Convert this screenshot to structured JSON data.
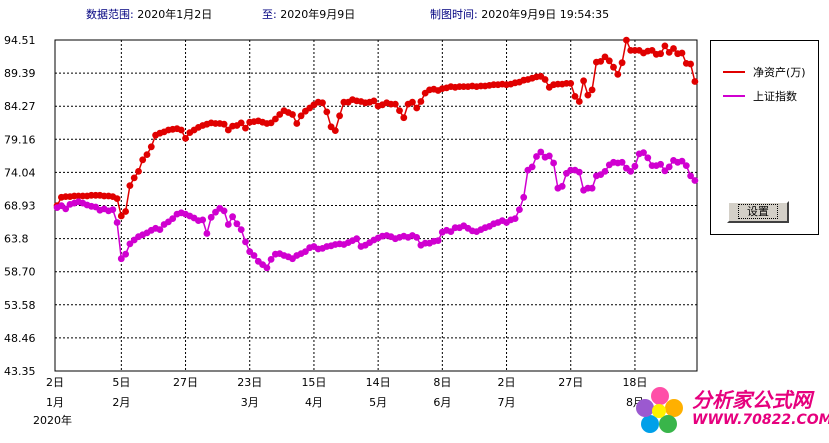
{
  "header": {
    "range_label": "数据范围:",
    "range_start": "2020年1月2日",
    "to_label": "至:",
    "range_end": "2020年9月9日",
    "made_label": "制图时间:",
    "made_time": "2020年9月9日  19:54:35"
  },
  "legend": {
    "items": [
      {
        "label": "净资产(万)",
        "color": "#e00000"
      },
      {
        "label": "上证指数",
        "color": "#d000d0"
      }
    ]
  },
  "settings_button": "设置",
  "watermark": {
    "text": "分析家公式网",
    "url": "WWW.70822.COM"
  },
  "chart_data": {
    "type": "line",
    "ylim": [
      43.35,
      94.51
    ],
    "yticks": [
      "94.51",
      "89.39",
      "84.27",
      "79.16",
      "74.04",
      "68.93",
      "63.8",
      "58.70",
      "53.58",
      "48.46",
      "43.35"
    ],
    "x_ticks": [
      {
        "day": "2日",
        "month": "1月",
        "i": 0
      },
      {
        "day": "5日",
        "month": "2月",
        "i": 15
      },
      {
        "day": "27日",
        "month": "",
        "i": 30
      },
      {
        "day": "23日",
        "month": "3月",
        "i": 45
      },
      {
        "day": "15日",
        "month": "4月",
        "i": 60
      },
      {
        "day": "14日",
        "month": "5月",
        "i": 75
      },
      {
        "day": "8日",
        "month": "6月",
        "i": 90
      },
      {
        "day": "2日",
        "month": "7月",
        "i": 105
      },
      {
        "day": "27日",
        "month": "",
        "i": 120
      },
      {
        "day": "18日",
        "month": "8月",
        "i": 135
      }
    ],
    "year_label": "2020年",
    "n_points": 150,
    "grid": true,
    "series": [
      {
        "name": "净资产(万)",
        "color": "#e00000",
        "values": [
          68.9,
          70.2,
          70.3,
          70.3,
          70.4,
          70.4,
          70.4,
          70.4,
          70.5,
          70.5,
          70.5,
          70.4,
          70.4,
          70.3,
          70.0,
          67.3,
          68.0,
          72.0,
          73.2,
          74.2,
          76.0,
          76.8,
          78.0,
          79.8,
          80.1,
          80.3,
          80.6,
          80.7,
          80.8,
          80.6,
          79.3,
          80.2,
          80.6,
          81.0,
          81.3,
          81.5,
          81.7,
          81.6,
          81.6,
          81.5,
          80.6,
          81.2,
          81.3,
          81.7,
          80.9,
          81.8,
          81.9,
          82.0,
          81.8,
          81.6,
          81.7,
          82.3,
          83.0,
          83.6,
          83.3,
          83.0,
          81.6,
          82.8,
          83.5,
          84.0,
          84.5,
          84.9,
          84.8,
          83.4,
          81.1,
          80.5,
          82.8,
          84.9,
          84.9,
          85.3,
          85.1,
          85.0,
          84.8,
          84.9,
          85.1,
          84.3,
          84.5,
          84.8,
          84.6,
          84.6,
          83.6,
          82.5,
          84.6,
          84.9,
          84.0,
          85.0,
          86.3,
          86.8,
          86.9,
          86.7,
          87.0,
          87.1,
          87.3,
          87.2,
          87.3,
          87.3,
          87.3,
          87.4,
          87.3,
          87.4,
          87.4,
          87.5,
          87.6,
          87.6,
          87.7,
          87.6,
          87.7,
          87.9,
          88.0,
          88.3,
          88.4,
          88.6,
          88.8,
          88.9,
          88.4,
          87.2,
          87.6,
          87.7,
          87.7,
          87.8,
          87.8,
          85.8,
          85.0,
          88.2,
          86.0,
          86.8,
          91.1,
          91.2,
          91.9,
          91.3,
          90.3,
          89.2,
          91.0,
          94.5,
          92.9,
          92.9,
          92.9,
          92.5,
          92.8,
          92.9,
          92.3,
          92.4,
          93.6,
          92.6,
          93.2,
          92.4,
          92.5,
          90.9,
          90.8,
          88.1
        ]
      },
      {
        "name": "上证指数",
        "color": "#d000d0",
        "values": [
          68.6,
          68.9,
          68.4,
          69.1,
          69.3,
          69.5,
          69.3,
          69.0,
          68.8,
          68.7,
          68.2,
          68.4,
          68.1,
          68.3,
          66.3,
          60.7,
          61.4,
          63.0,
          63.6,
          64.1,
          64.4,
          64.7,
          65.1,
          65.4,
          65.2,
          66.0,
          66.4,
          66.9,
          67.6,
          67.8,
          67.6,
          67.3,
          67.0,
          66.6,
          66.7,
          64.6,
          67.1,
          67.9,
          68.5,
          68.1,
          66.0,
          67.2,
          66.1,
          65.2,
          63.3,
          61.8,
          61.2,
          60.3,
          59.8,
          59.3,
          60.6,
          61.4,
          61.5,
          61.2,
          61.0,
          60.7,
          61.2,
          61.5,
          61.8,
          62.4,
          62.6,
          62.2,
          62.3,
          62.6,
          62.7,
          62.9,
          63.0,
          62.9,
          63.2,
          63.5,
          63.8,
          62.6,
          62.8,
          63.2,
          63.6,
          63.9,
          64.2,
          64.3,
          64.1,
          63.8,
          64.0,
          64.2,
          64.0,
          64.3,
          64.0,
          62.8,
          63.1,
          63.1,
          63.4,
          63.5,
          64.8,
          65.1,
          64.9,
          65.5,
          65.5,
          65.8,
          65.4,
          65.0,
          64.9,
          65.2,
          65.5,
          65.7,
          66.1,
          66.3,
          66.6,
          66.3,
          66.7,
          66.9,
          68.3,
          70.2,
          74.4,
          74.9,
          76.5,
          77.2,
          76.4,
          76.6,
          75.5,
          71.6,
          71.9,
          73.9,
          74.4,
          74.4,
          74.1,
          71.3,
          71.6,
          71.6,
          73.5,
          73.7,
          74.2,
          75.2,
          75.6,
          75.5,
          75.6,
          74.7,
          74.2,
          75.0,
          76.9,
          77.1,
          76.3,
          75.1,
          75.1,
          75.3,
          74.3,
          74.9,
          75.9,
          75.6,
          75.8,
          75.1,
          73.5,
          72.8
        ]
      }
    ]
  }
}
